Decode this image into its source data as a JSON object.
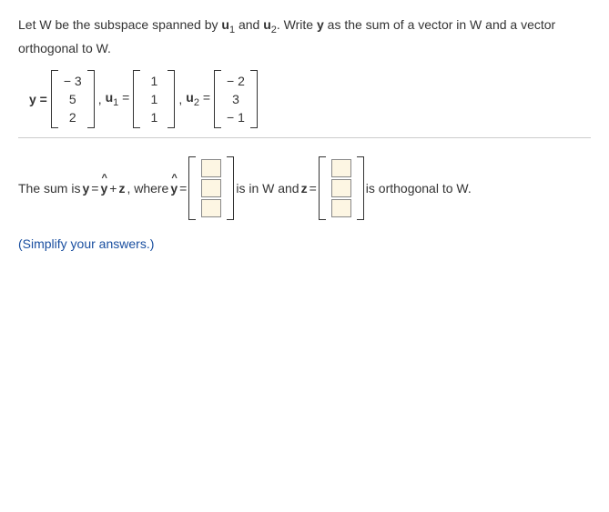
{
  "prompt": {
    "text_a": "Let W be the subspace spanned by ",
    "u1": "u",
    "u1_sub": "1",
    "text_b": " and ",
    "u2": "u",
    "u2_sub": "2",
    "text_c": ". Write ",
    "y_bold": "y",
    "text_d": " as the sum of a vector in W and a vector orthogonal to W."
  },
  "given": {
    "y_label": "y =",
    "y": [
      "− 3",
      "5",
      "2"
    ],
    "comma1": ", ",
    "u1_label_a": "u",
    "u1_sub_l": "1",
    "u1_label_b": " =",
    "u1": [
      "1",
      "1",
      "1"
    ],
    "comma2": ", ",
    "u2_label_a": "u",
    "u2_sub_l": "2",
    "u2_label_b": " =",
    "u2": [
      "− 2",
      "3",
      "− 1"
    ]
  },
  "answer": {
    "pre": "The sum is ",
    "eq1_a": "y",
    "eq1_b": " = ",
    "eq1_c": "y",
    "eq1_d": " + ",
    "eq1_e": "z",
    "eq1_f": ", where ",
    "yhat_lbl_a": "y",
    "yhat_lbl_b": " =",
    "mid": " is in W and ",
    "z_lbl": "z",
    "z_eq": " =",
    "post": " is orthogonal to W."
  },
  "note": "(Simplify your answers.)"
}
